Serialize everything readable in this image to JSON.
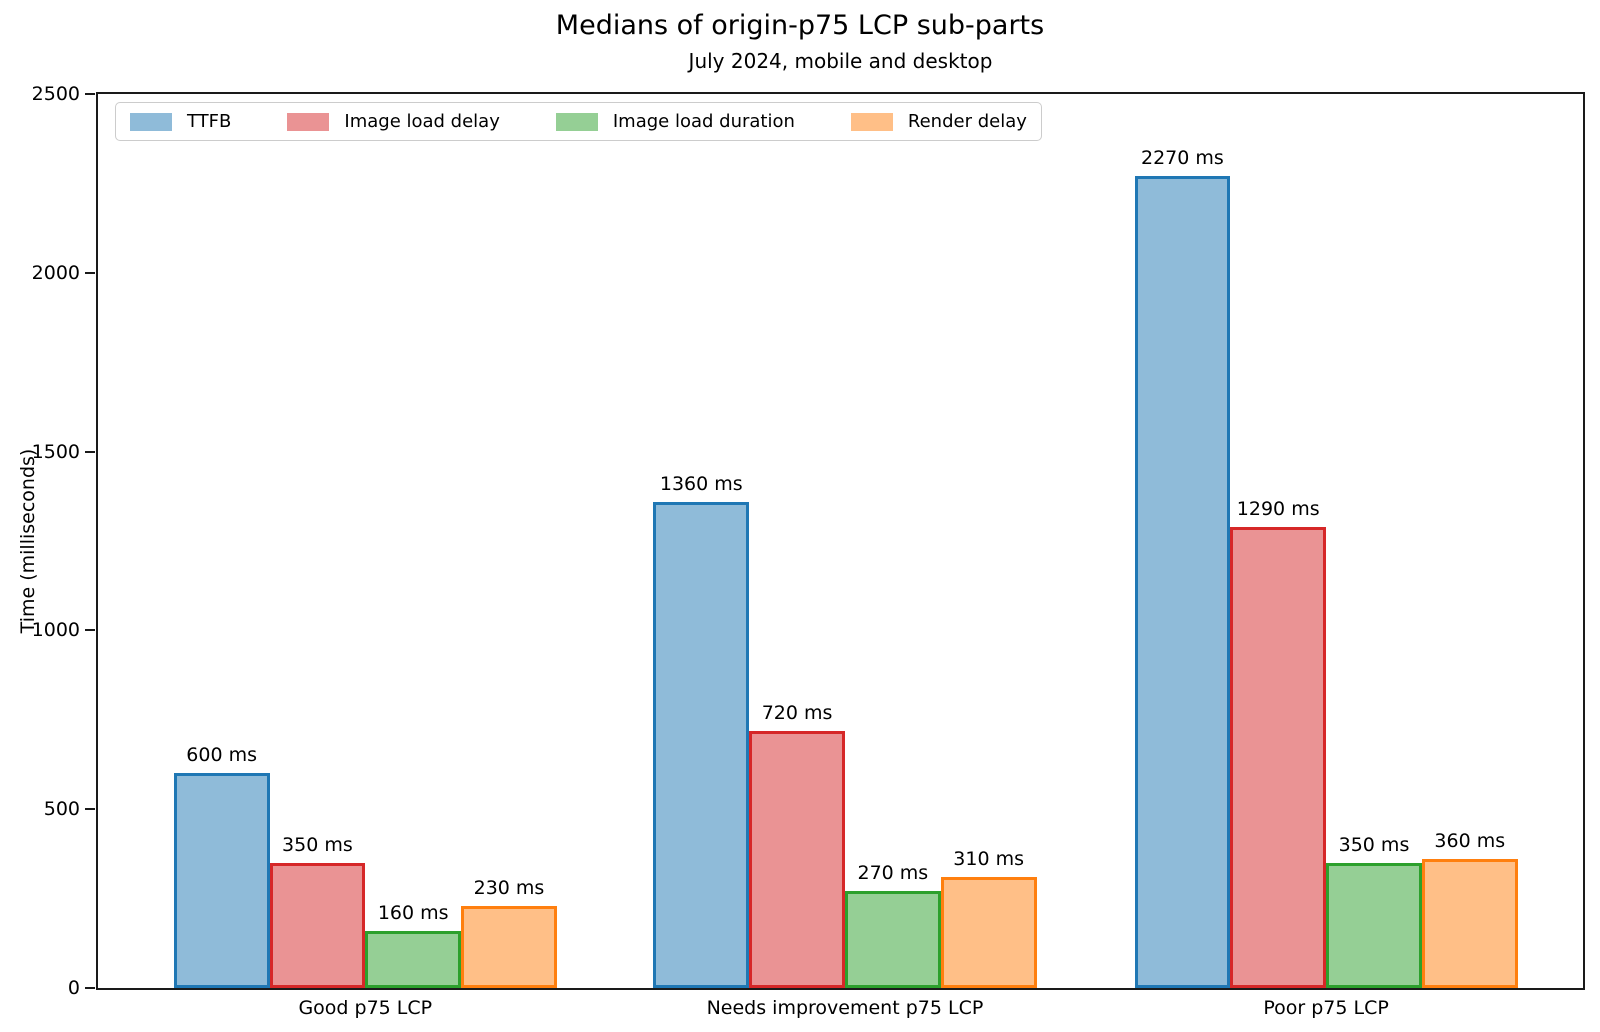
{
  "chart_data": {
    "type": "bar",
    "title": "Medians of origin-p75 LCP sub-parts",
    "subtitle": "July 2024, mobile and desktop",
    "ylabel": "Time (milliseconds)",
    "xlabel": "",
    "categories": [
      "Good p75 LCP",
      "Needs improvement p75 LCP",
      "Poor p75 LCP"
    ],
    "series": [
      {
        "name": "TTFB",
        "values": [
          600,
          1360,
          2270
        ],
        "fill": "#8FBBD9",
        "edge": "#1F77B4"
      },
      {
        "name": "Image load delay",
        "values": [
          350,
          720,
          1290
        ],
        "fill": "#EA9394",
        "edge": "#D62728"
      },
      {
        "name": "Image load duration",
        "values": [
          160,
          270,
          350
        ],
        "fill": "#95CF95",
        "edge": "#2CA02C"
      },
      {
        "name": "Render delay",
        "values": [
          230,
          310,
          360
        ],
        "fill": "#FFBF87",
        "edge": "#FF7F0E"
      }
    ],
    "value_suffix": " ms",
    "ylim": [
      0,
      2500
    ],
    "yticks": [
      0,
      500,
      1000,
      1500,
      2000,
      2500
    ],
    "legend_position": "top-left",
    "grid": false,
    "bar_labels": {
      "Good p75 LCP": [
        "600 ms",
        "350 ms",
        "160 ms",
        "230 ms"
      ],
      "Needs improvement p75 LCP": [
        "1360 ms",
        "720 ms",
        "270 ms",
        "310 ms"
      ],
      "Poor p75 LCP": [
        "2270 ms",
        "1290 ms",
        "350 ms",
        "360 ms"
      ]
    }
  }
}
